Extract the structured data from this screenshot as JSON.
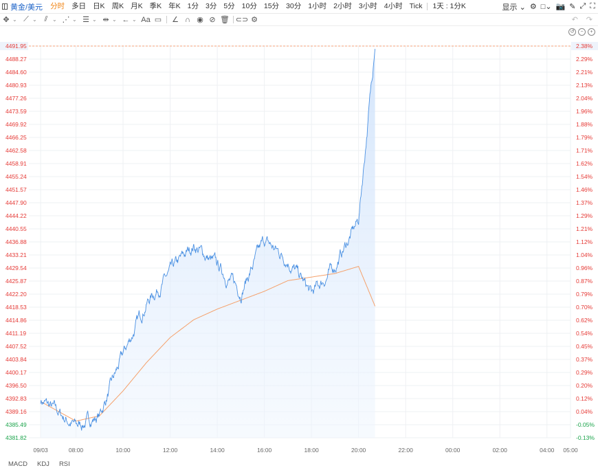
{
  "header": {
    "symbol": "黄金/美元",
    "timeframes": [
      "分时",
      "多日",
      "日K",
      "周K",
      "月K",
      "季K",
      "年K",
      "1分",
      "3分",
      "5分",
      "10分",
      "15分",
      "30分",
      "1小时",
      "2小时",
      "3小时",
      "4小时",
      "Tick",
      "1天 : 1分K"
    ],
    "active_timeframe": "分时",
    "display_label": "显示"
  },
  "drawing_tools": [
    "crosshair-icon",
    "line-tool-icon",
    "channel-tool-icon",
    "pattern-tool-icon",
    "fib-tool-icon",
    "measure-tool-icon",
    "arrow-tool-icon",
    "text-tool-icon",
    "comment-icon",
    "angle-icon",
    "magnet-icon",
    "eye-icon",
    "hide-icon",
    "trash-icon",
    "link-icon",
    "settings-icon"
  ],
  "text_tool_label": "Aa",
  "colors": {
    "price_line": "#4a90e2",
    "ma_line": "#f5a06a",
    "up": "#e53935",
    "down": "#1aa34a",
    "grid": "#eef0f3",
    "dash": "#f4a27a"
  },
  "chart_data": {
    "type": "area",
    "x_ticks": [
      "09/03",
      "08:00",
      "10:00",
      "12:00",
      "14:00",
      "16:00",
      "18:00",
      "20:00",
      "22:00",
      "00:00",
      "02:00",
      "04:00",
      "05:00"
    ],
    "y_ticks_left": [
      "4491.95",
      "4488.27",
      "4484.60",
      "4480.93",
      "4477.26",
      "4473.59",
      "4469.92",
      "4466.25",
      "4462.58",
      "4458.91",
      "4455.24",
      "4451.57",
      "4447.90",
      "4444.22",
      "4440.55",
      "4436.88",
      "4433.21",
      "4429.54",
      "4425.87",
      "4422.20",
      "4418.53",
      "4414.86",
      "4411.19",
      "4407.52",
      "4403.84",
      "4400.17",
      "4396.50",
      "4392.83",
      "4389.16",
      "4385.49",
      "4381.82"
    ],
    "y_ticks_right": [
      "2.38%",
      "2.29%",
      "2.21%",
      "2.13%",
      "2.04%",
      "1.96%",
      "1.88%",
      "1.79%",
      "1.71%",
      "1.62%",
      "1.54%",
      "1.46%",
      "1.37%",
      "1.29%",
      "1.21%",
      "1.12%",
      "1.04%",
      "0.96%",
      "0.87%",
      "0.79%",
      "0.70%",
      "0.62%",
      "0.54%",
      "0.45%",
      "0.37%",
      "0.29%",
      "0.20%",
      "0.12%",
      "0.04%",
      "-0.05%",
      "-0.13%"
    ],
    "ylim": [
      4381.82,
      4491.95
    ],
    "current_price": 4491.95,
    "x_hours": [
      6.5,
      8,
      9,
      10,
      11,
      12,
      13,
      14,
      15,
      16,
      17,
      18,
      19,
      20,
      20.7
    ],
    "price_series": [
      4392.5,
      4385,
      4388,
      4405,
      4420,
      4428,
      4436,
      4430,
      4423,
      4437,
      4432,
      4422,
      4430,
      4443,
      4491.95
    ],
    "ma_series": [
      4392,
      4386.5,
      4388,
      4395,
      4403,
      4410,
      4415,
      4418,
      4420.5,
      4423,
      4426,
      4427,
      4428,
      4430,
      4418.8
    ]
  },
  "bottom_tabs": [
    "MACD",
    "KDJ",
    "RSI"
  ]
}
